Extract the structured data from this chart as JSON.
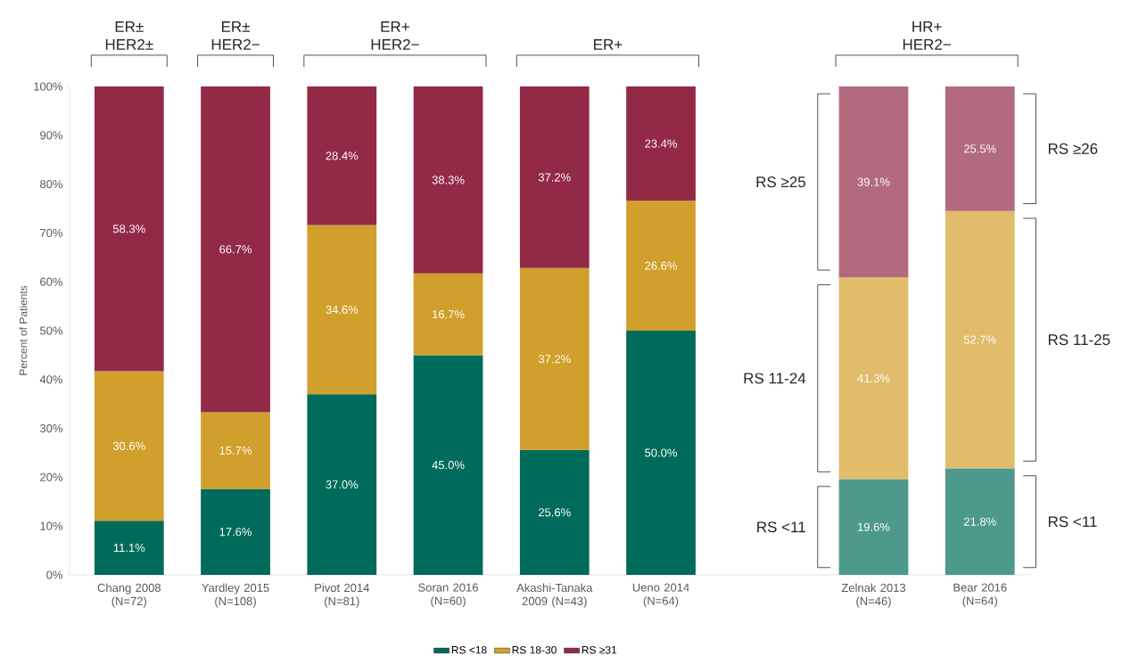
{
  "chart_data": {
    "type": "bar",
    "stacked": true,
    "ylabel": "Percent of Patients",
    "categories": [
      "Chang 2008 (N=72)",
      "Yardley 2015 (N=108)",
      "Pivot 2014 (N=81)",
      "Soran 2016 (N=60)",
      "Akashi-Tanaka 2009 (N=43)",
      "Ueno 2014 (N=64)",
      null,
      "Zelnak 2013 (N=46)",
      "Bear 2016 (N=64)"
    ],
    "series": [
      {
        "name": "RS <18",
        "color": "#006b5a",
        "colors": [
          "#006b5a",
          "#006b5a",
          "#006b5a",
          "#006b5a",
          "#006b5a",
          "#006b5a",
          null,
          "#4d998c",
          "#4d998c"
        ],
        "values": [
          11.1,
          17.6,
          37.0,
          45.0,
          25.6,
          50.0,
          null,
          19.6,
          21.8
        ],
        "value_labels": [
          "11.1%",
          "17.6%",
          "37.0%",
          "45.0%",
          "25.6%",
          "50.0%",
          null,
          "19.6%",
          "21.8%"
        ]
      },
      {
        "name": "RS 18-30",
        "color": "#d19f2b",
        "colors": [
          "#d19f2b",
          "#d19f2b",
          "#d19f2b",
          "#d19f2b",
          "#d19f2b",
          "#d19f2b",
          null,
          "#e0bc6b",
          "#e0bc6b"
        ],
        "values": [
          30.6,
          15.7,
          34.6,
          16.7,
          37.2,
          26.6,
          null,
          41.3,
          52.7
        ],
        "value_labels": [
          "30.6%",
          "15.7%",
          "34.6%",
          "16.7%",
          "37.2%",
          "26.6%",
          null,
          "41.3%",
          "52.7%"
        ]
      },
      {
        "name": "RS ≥31",
        "color": "#922a46",
        "colors": [
          "#922a46",
          "#922a46",
          "#922a46",
          "#922a46",
          "#922a46",
          "#922a46",
          null,
          "#b36a7d",
          "#b36a7d"
        ],
        "values": [
          58.3,
          66.7,
          28.4,
          38.3,
          37.2,
          23.4,
          null,
          39.1,
          25.5
        ],
        "value_labels": [
          "58.3%",
          "66.7%",
          "28.4%",
          "38.3%",
          "37.2%",
          "23.4%",
          null,
          "39.1%",
          "25.5%"
        ]
      }
    ],
    "ylim": [
      0,
      100
    ],
    "yticks": [
      {
        "value": 0,
        "label": "0%"
      },
      {
        "value": 10,
        "label": "10%"
      },
      {
        "value": 20,
        "label": "20%"
      },
      {
        "value": 30,
        "label": "30%"
      },
      {
        "value": 40,
        "label": "40%"
      },
      {
        "value": 50,
        "label": "50%"
      },
      {
        "value": 60,
        "label": "60%"
      },
      {
        "value": 70,
        "label": "70%"
      },
      {
        "value": 80,
        "label": "80%"
      },
      {
        "value": 90,
        "label": "90%"
      },
      {
        "value": 100,
        "label": "100%"
      }
    ],
    "legend": "bottom",
    "annotations": [
      "ER± HER2±",
      "ER± HER2−",
      "ER+ HER2−",
      "ER+",
      "HR+ HER2−",
      "RS ≥25",
      "RS 11-24",
      "RS <11",
      "RS ≥26",
      "RS 11-25",
      "RS <11"
    ]
  }
}
